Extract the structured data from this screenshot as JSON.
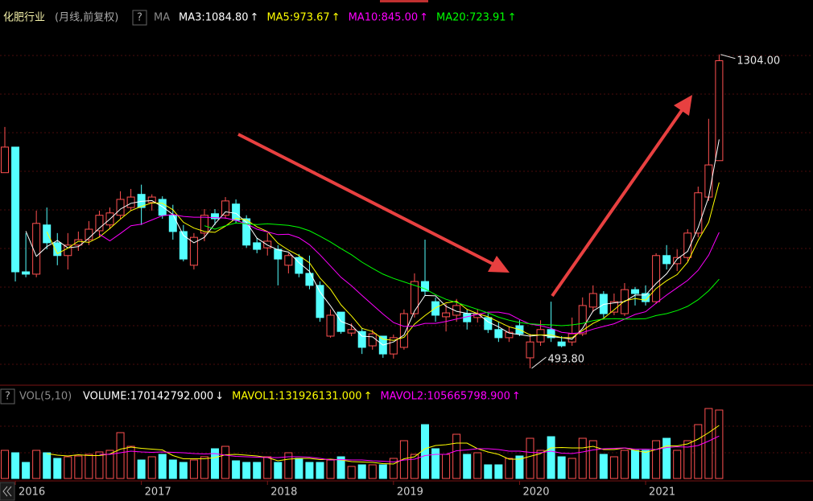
{
  "chart_data": {
    "type": "candlestick",
    "title": "化肥行业",
    "subtitle": "(月线,前复权)",
    "help": "?",
    "indicator": "MA",
    "categories": [
      null,
      "2016",
      null,
      null,
      null,
      null,
      null,
      null,
      null,
      null,
      null,
      null,
      null,
      "2017",
      null,
      null,
      null,
      null,
      null,
      null,
      null,
      null,
      null,
      null,
      null,
      "2018",
      null,
      null,
      null,
      null,
      null,
      null,
      null,
      null,
      null,
      null,
      null,
      "2019",
      null,
      null,
      null,
      null,
      null,
      null,
      null,
      null,
      null,
      null,
      null,
      "2020",
      null,
      null,
      null,
      null,
      null,
      null,
      null,
      null,
      null,
      null,
      null,
      "2021",
      null,
      null,
      null,
      null,
      null,
      null,
      null
    ],
    "open": [
      999,
      1065,
      743,
      737,
      864,
      818,
      785,
      812,
      826,
      849,
      864,
      889,
      909,
      943,
      922,
      930,
      889,
      847,
      760,
      843,
      893,
      889,
      918,
      880,
      818,
      805,
      801,
      760,
      780,
      739,
      708,
      577,
      639,
      585,
      589,
      552,
      577,
      531,
      548,
      635,
      718,
      666,
      627,
      631,
      635,
      625,
      625,
      594,
      573,
      604,
      521,
      562,
      594,
      562,
      562,
      583,
      652,
      685,
      639,
      635,
      697,
      687,
      666,
      785,
      764,
      780,
      843,
      936,
      1030
    ],
    "high": [
      1117,
      1065,
      843,
      901,
      909,
      843,
      843,
      847,
      874,
      901,
      909,
      951,
      957,
      968,
      943,
      938,
      916,
      864,
      843,
      905,
      905,
      936,
      930,
      889,
      830,
      843,
      812,
      791,
      789,
      785,
      718,
      646,
      639,
      610,
      598,
      594,
      577,
      581,
      646,
      739,
      826,
      677,
      660,
      673,
      646,
      646,
      635,
      614,
      602,
      618,
      583,
      618,
      666,
      577,
      625,
      677,
      708,
      693,
      687,
      714,
      704,
      708,
      791,
      812,
      801,
      853,
      963,
      1138,
      1304
    ],
    "low": [
      999,
      718,
      729,
      729,
      801,
      760,
      749,
      797,
      812,
      832,
      853,
      880,
      901,
      864,
      901,
      880,
      826,
      770,
      749,
      822,
      864,
      880,
      868,
      805,
      791,
      785,
      708,
      739,
      729,
      698,
      614,
      573,
      583,
      577,
      531,
      542,
      521,
      519,
      542,
      625,
      681,
      614,
      589,
      614,
      594,
      612,
      585,
      562,
      562,
      577,
      493.8,
      552,
      562,
      548,
      552,
      577,
      639,
      625,
      631,
      629,
      656,
      656,
      660,
      749,
      745,
      770,
      832,
      926,
      1030
    ],
    "close": [
      1065,
      743,
      737,
      868,
      818,
      785,
      812,
      826,
      853,
      889,
      895,
      930,
      936,
      909,
      936,
      889,
      847,
      776,
      832,
      889,
      880,
      926,
      876,
      812,
      801,
      822,
      776,
      785,
      739,
      708,
      625,
      631,
      589,
      594,
      548,
      583,
      531,
      573,
      635,
      718,
      693,
      631,
      637,
      656,
      614,
      635,
      594,
      573,
      587,
      583,
      562,
      594,
      573,
      552,
      583,
      656,
      687,
      635,
      666,
      697,
      687,
      666,
      785,
      764,
      780,
      843,
      947,
      1019,
      1288
    ],
    "up_color": "#ff5050",
    "down_color": "#54ffff",
    "ylim": [
      469,
      1370
    ],
    "series": [
      {
        "name": "MA3:1084.80",
        "trend": "↑",
        "color": "#ffffff",
        "values": [
          null,
          null,
          848,
          783,
          808,
          824,
          805,
          808,
          830,
          856,
          879,
          905,
          920,
          925,
          927,
          911,
          891,
          837,
          818,
          832,
          867,
          898,
          894,
          871,
          830,
          812,
          800,
          794,
          767,
          744,
          691,
          655,
          615,
          605,
          577,
          575,
          554,
          562,
          580,
          642,
          682,
          681,
          654,
          641,
          636,
          635,
          614,
          601,
          585,
          581,
          577,
          580,
          576,
          573,
          569,
          597,
          642,
          659,
          663,
          666,
          683,
          683,
          713,
          738,
          776,
          796,
          857,
          936,
          1084.8
        ]
      },
      {
        "name": "MA5:973.67",
        "trend": "↑",
        "color": "#ffff00",
        "values": [
          null,
          null,
          null,
          null,
          846,
          790,
          804,
          822,
          819,
          833,
          855,
          879,
          901,
          912,
          921,
          920,
          903,
          871,
          856,
          847,
          845,
          861,
          881,
          877,
          859,
          847,
          817,
          799,
          785,
          766,
          727,
          698,
          658,
          629,
          597,
          589,
          569,
          566,
          574,
          608,
          630,
          650,
          663,
          667,
          646,
          635,
          627,
          614,
          601,
          594,
          580,
          580,
          580,
          573,
          573,
          592,
          610,
          623,
          645,
          668,
          674,
          670,
          700,
          720,
          736,
          768,
          824,
          871,
          973.67
        ]
      },
      {
        "name": "MA10:845.00",
        "trend": "↑",
        "color": "#ff00ff",
        "values": [
          null,
          null,
          null,
          null,
          null,
          null,
          null,
          null,
          null,
          840,
          823,
          842,
          862,
          866,
          877,
          888,
          891,
          886,
          884,
          884,
          883,
          882,
          876,
          867,
          853,
          846,
          839,
          840,
          831,
          813,
          787,
          758,
          729,
          707,
          682,
          658,
          634,
          612,
          602,
          603,
          610,
          610,
          615,
          621,
          627,
          633,
          639,
          639,
          634,
          620,
          608,
          604,
          597,
          587,
          584,
          586,
          595,
          602,
          609,
          621,
          633,
          640,
          662,
          683,
          702,
          721,
          747,
          786,
          845
        ]
      },
      {
        "name": "MA20:723.91",
        "trend": "↑",
        "color": "#00ff00",
        "values": [
          null,
          null,
          null,
          null,
          null,
          null,
          null,
          null,
          null,
          null,
          null,
          null,
          null,
          null,
          null,
          null,
          null,
          null,
          null,
          862,
          853,
          862,
          869,
          867,
          865,
          867,
          865,
          863,
          858,
          849,
          835,
          820,
          803,
          787,
          768,
          752,
          737,
          726,
          717,
          708,
          699,
          684,
          672,
          664,
          655,
          646,
          637,
          626,
          618,
          612,
          609,
          607,
          606,
          604,
          606,
          610,
          617,
          621,
          622,
          621,
          621,
          622,
          630,
          635,
          643,
          654,
          671,
          694,
          723.91
        ]
      }
    ],
    "annotations": [
      {
        "label": "1304.00",
        "value": 1304
      },
      {
        "label": "493.80",
        "value": 493.8
      }
    ],
    "volume": {
      "type": "bar",
      "help": "?",
      "indicator": "VOL(5,10)",
      "name": "VOLUME:170142792.000",
      "trend": "↓",
      "color": "#ffffff",
      "ylim": [
        0,
        190000000
      ],
      "values": [
        70000000,
        64000000,
        40000000,
        70000000,
        64000000,
        50000000,
        54000000,
        56000000,
        60000000,
        66000000,
        70000000,
        114000000,
        80000000,
        46000000,
        54000000,
        60000000,
        46000000,
        40000000,
        46000000,
        54000000,
        74000000,
        80000000,
        44000000,
        40000000,
        40000000,
        54000000,
        40000000,
        64000000,
        50000000,
        40000000,
        40000000,
        46000000,
        54000000,
        30000000,
        34000000,
        34000000,
        34000000,
        50000000,
        94000000,
        60000000,
        134000000,
        74000000,
        60000000,
        110000000,
        60000000,
        64000000,
        34000000,
        34000000,
        50000000,
        56000000,
        100000000,
        70000000,
        104000000,
        54000000,
        50000000,
        100000000,
        94000000,
        60000000,
        54000000,
        70000000,
        70000000,
        70000000,
        94000000,
        100000000,
        70000000,
        94000000,
        134000000,
        174000000,
        170142792
      ],
      "series": [
        {
          "name": "MAVOL1:131926131.000",
          "trend": "↑",
          "color": "#ffff00",
          "values": [
            null,
            null,
            null,
            null,
            62000000,
            58000000,
            56000000,
            59000000,
            57000000,
            57000000,
            61000000,
            73000000,
            78000000,
            75000000,
            73000000,
            71000000,
            57000000,
            49000000,
            49000000,
            49000000,
            52000000,
            59000000,
            60000000,
            58000000,
            56000000,
            52000000,
            44000000,
            48000000,
            50000000,
            50000000,
            47000000,
            48000000,
            46000000,
            42000000,
            41000000,
            40000000,
            37000000,
            36000000,
            49000000,
            54000000,
            74000000,
            82000000,
            84000000,
            88000000,
            88000000,
            74000000,
            66000000,
            60000000,
            48000000,
            48000000,
            55000000,
            62000000,
            76000000,
            77000000,
            76000000,
            76000000,
            80000000,
            72000000,
            72000000,
            76000000,
            70000000,
            65000000,
            72000000,
            81000000,
            81000000,
            86000000,
            98000000,
            114000000,
            131926131
          ]
        },
        {
          "name": "MAVOL2:105665798.900",
          "trend": "↑",
          "color": "#ff00ff",
          "values": [
            null,
            null,
            null,
            null,
            null,
            null,
            null,
            null,
            null,
            60000000,
            60000000,
            64000000,
            68000000,
            66000000,
            65000000,
            66000000,
            65000000,
            64000000,
            62000000,
            61000000,
            62000000,
            58000000,
            55000000,
            54000000,
            53000000,
            52000000,
            52000000,
            54000000,
            54000000,
            53000000,
            50000000,
            46000000,
            47000000,
            46000000,
            46000000,
            44000000,
            43000000,
            41000000,
            46000000,
            48000000,
            57000000,
            60000000,
            60000000,
            69000000,
            71000000,
            74000000,
            74000000,
            72000000,
            68000000,
            68000000,
            65000000,
            64000000,
            68000000,
            63000000,
            62000000,
            66000000,
            71000000,
            74000000,
            75000000,
            76000000,
            73000000,
            73000000,
            72000000,
            77000000,
            79000000,
            78000000,
            82000000,
            93000000,
            105665798.9
          ]
        }
      ]
    }
  }
}
